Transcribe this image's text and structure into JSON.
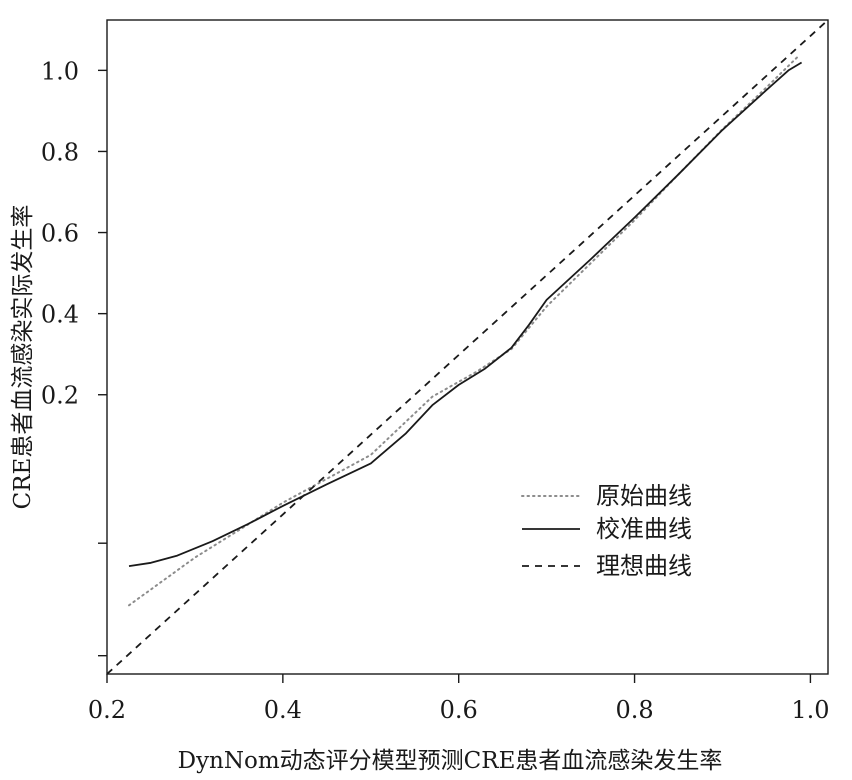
{
  "chart_data": {
    "type": "line",
    "xlabel": "DynNom动态评分模型预测CRE患者血流感染发生率",
    "ylabel": "CRE患者血流感染实际发生率",
    "xlim": [
      0.2,
      1.02
    ],
    "x_ticks": [
      0.2,
      0.4,
      0.6,
      0.8,
      1.0
    ],
    "x_tick_labels": [
      "0.2",
      "0.4",
      "0.6",
      "0.8",
      "1.0"
    ],
    "y_ticks": [
      1.0,
      0.8,
      0.6,
      0.4,
      0.2
    ],
    "y_tick_labels": [
      "1.0",
      "0.8",
      "0.6",
      "0.4",
      "0.2",
      "",
      ""
    ],
    "y_tick_frac": [
      0.923,
      0.799,
      0.675,
      0.551,
      0.427,
      0.2,
      0.028
    ],
    "grid": false,
    "legend_position": "bottom-right",
    "series": [
      {
        "name": "原始曲线",
        "style": "dotted",
        "color": "#8c8c8c",
        "x": [
          0.225,
          0.3,
          0.4,
          0.5,
          0.57,
          0.62,
          0.66,
          0.7,
          0.75,
          0.8,
          0.85,
          0.9,
          0.95,
          0.985
        ],
        "y_frac": [
          0.105,
          0.178,
          0.262,
          0.335,
          0.424,
          0.462,
          0.497,
          0.562,
          0.628,
          0.694,
          0.764,
          0.833,
          0.897,
          0.943
        ]
      },
      {
        "name": "校准曲线",
        "style": "solid",
        "color": "#1a1a1a",
        "x": [
          0.225,
          0.25,
          0.28,
          0.32,
          0.36,
          0.4,
          0.45,
          0.5,
          0.54,
          0.57,
          0.6,
          0.63,
          0.66,
          0.68,
          0.7,
          0.75,
          0.8,
          0.85,
          0.9,
          0.95,
          0.975,
          0.99
        ],
        "y_frac": [
          0.165,
          0.17,
          0.181,
          0.203,
          0.229,
          0.257,
          0.29,
          0.322,
          0.368,
          0.411,
          0.442,
          0.467,
          0.499,
          0.534,
          0.572,
          0.634,
          0.698,
          0.764,
          0.832,
          0.893,
          0.923,
          0.935
        ]
      },
      {
        "name": "理想曲线",
        "style": "dashed",
        "color": "#1a1a1a",
        "x": [
          0.2,
          1.02
        ],
        "y_frac": [
          0.0,
          1.0
        ]
      }
    ]
  }
}
